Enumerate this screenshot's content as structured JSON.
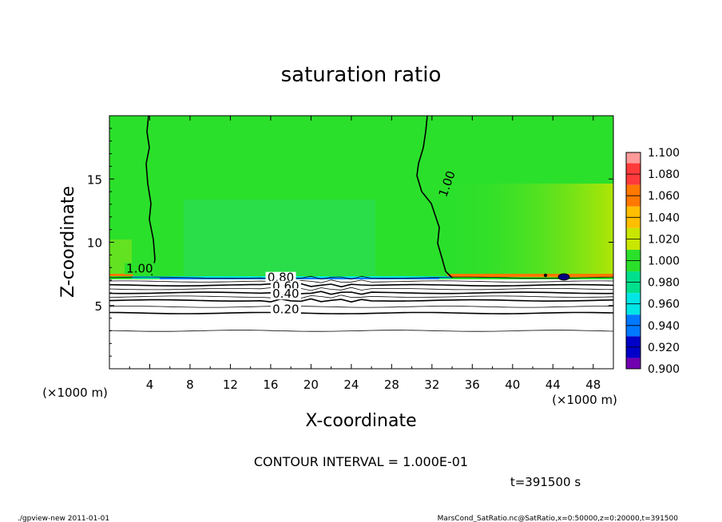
{
  "chart_data": {
    "type": "heatmap",
    "title": "saturation ratio",
    "xlabel": "X-coordinate",
    "ylabel": "Z-coordinate",
    "x_unit_label": "(×1000 m)",
    "z_unit_label": "(×1000 m)",
    "xlim": [
      0,
      50
    ],
    "ylim": [
      0,
      20
    ],
    "x_ticks": [
      "4",
      "8",
      "12",
      "16",
      "20",
      "24",
      "28",
      "32",
      "36",
      "40",
      "44",
      "48"
    ],
    "x_tick_values": [
      4,
      8,
      12,
      16,
      20,
      24,
      28,
      32,
      36,
      40,
      44,
      48
    ],
    "y_ticks": [
      "5",
      "10",
      "15"
    ],
    "y_tick_values": [
      5,
      10,
      15
    ],
    "colorbar": {
      "levels": [
        "1.100",
        "1.080",
        "1.060",
        "1.040",
        "1.020",
        "1.000",
        "0.980",
        "0.960",
        "0.940",
        "0.920",
        "0.900"
      ],
      "colors": [
        "#ff9a9a",
        "#ff3a3a",
        "#ff7800",
        "#ffbe00",
        "#c8e600",
        "#2be02b",
        "#00e08c",
        "#00e6e6",
        "#0078ff",
        "#0000c8",
        "#7000b0"
      ]
    },
    "contour_labels": [
      {
        "text": "1.00",
        "x": 3.0,
        "z": 7.6
      },
      {
        "text": "1.00",
        "x": 33.5,
        "z": 14.3
      },
      {
        "text": "0.80",
        "x": 17.0,
        "z": 6.9
      },
      {
        "text": "0.60",
        "x": 17.5,
        "z": 6.2
      },
      {
        "text": "0.40",
        "x": 17.5,
        "z": 5.6
      },
      {
        "text": "0.20",
        "x": 17.5,
        "z": 4.4
      }
    ],
    "boundary_z": 7.3,
    "contour_levels_below": [
      7.2,
      6.9,
      6.6,
      6.3,
      6.0,
      5.7,
      5.4,
      4.9,
      4.4,
      3.0
    ]
  },
  "contour_interval": "CONTOUR INTERVAL = 1.000E-01",
  "time_label": "t=391500 s",
  "footer_left": "./gpview-new   2011-01-01",
  "footer_right": "MarsCond_SatRatio.nc@SatRatio,x=0:50000,z=0:20000,t=391500"
}
